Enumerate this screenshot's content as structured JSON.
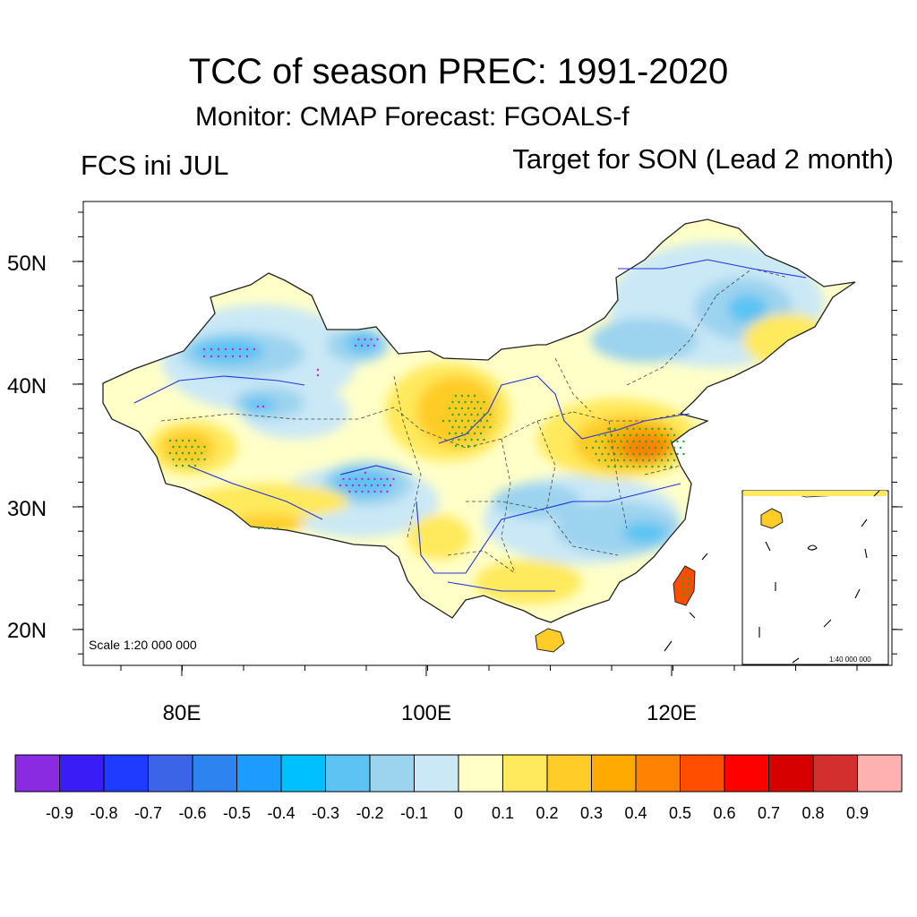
{
  "title": "TCC of season PREC: 1991-2020",
  "subtitle": "Monitor: CMAP   Forecast: FGOALS-f",
  "left_label": "FCS ini JUL",
  "right_label": "Target for SON (Lead 2 month)",
  "map": {
    "scale_text": "Scale 1:20 000 000",
    "inset_scale_text": "1:40 000 000",
    "lat_labels": [
      "50N",
      "40N",
      "30N",
      "20N"
    ],
    "lon_labels": [
      "80E",
      "100E",
      "120E"
    ]
  },
  "colorbar": {
    "colors": [
      "#8a2be2",
      "#3a1cf5",
      "#1e3cff",
      "#3c64e6",
      "#2d84f0",
      "#1e9bff",
      "#00c0ff",
      "#5cc3f3",
      "#9cd3ef",
      "#cae8f6",
      "#ffffc8",
      "#ffe95c",
      "#ffcc28",
      "#ffaa00",
      "#ff8200",
      "#ff4e00",
      "#ff0000",
      "#d60000",
      "#d42f2f",
      "#ffb0b0"
    ],
    "labels": [
      "-0.9",
      "-0.8",
      "-0.7",
      "-0.6",
      "-0.5",
      "-0.4",
      "-0.3",
      "-0.2",
      "-0.1",
      "0",
      "0.1",
      "0.2",
      "0.3",
      "0.4",
      "0.5",
      "0.6",
      "0.7",
      "0.8",
      "0.9"
    ]
  },
  "colors": {
    "river": "#2233dd",
    "border": "#222222",
    "stipple_positive": "#22aa33",
    "stipple_negative": "#cc22cc"
  }
}
